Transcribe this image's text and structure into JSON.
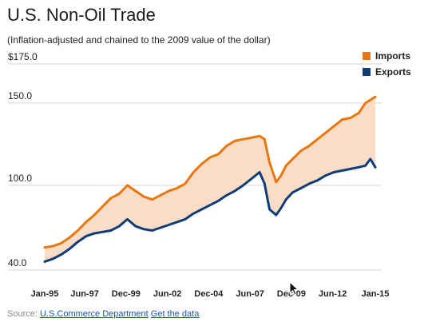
{
  "title": "U.S. Non-Oil Trade",
  "subtitle": "(Inflation-adjusted and chained to the 2009 value of the dollar)",
  "source": {
    "label": "Source:",
    "link1": "U.S.Commerce Department",
    "link2": "Get the data"
  },
  "colors": {
    "imports": "#e8780e",
    "exports": "#0e3d78",
    "fill": "#fbdcc6",
    "grid": "#d5d5d5"
  },
  "chart_data": {
    "type": "line",
    "title": "U.S. Non-Oil Trade",
    "subtitle": "(Inflation-adjusted and chained to the 2009 value of the dollar)",
    "y_ticks": [
      {
        "value": 175,
        "label": "$175.0"
      },
      {
        "value": 150,
        "label": "150.0"
      },
      {
        "value": 100,
        "label": "100.0"
      },
      {
        "value": 40,
        "label": "40.0"
      }
    ],
    "x_ticks": [
      "Jan-95",
      "Jun-97",
      "Dec-99",
      "Jun-02",
      "Dec-04",
      "Jun-07",
      "Dec-09",
      "Jun-12",
      "Jan-15"
    ],
    "x_tick_years": [
      1995.0,
      1997.42,
      1999.92,
      2002.42,
      2004.92,
      2007.42,
      2009.92,
      2012.42,
      2015.0
    ],
    "legend": [
      "Imports",
      "Exports"
    ],
    "legend_position": "top-right",
    "x": [
      1995.0,
      1995.5,
      1996.0,
      1996.5,
      1997.0,
      1997.5,
      1998.0,
      1998.5,
      1999.0,
      1999.5,
      2000.0,
      2000.5,
      2001.0,
      2001.5,
      2002.0,
      2002.5,
      2003.0,
      2003.5,
      2004.0,
      2004.5,
      2005.0,
      2005.5,
      2006.0,
      2006.5,
      2007.0,
      2007.5,
      2008.0,
      2008.3,
      2008.6,
      2009.0,
      2009.3,
      2009.6,
      2010.0,
      2010.5,
      2011.0,
      2011.5,
      2012.0,
      2012.5,
      2013.0,
      2013.5,
      2014.0,
      2014.4,
      2014.7,
      2015.0
    ],
    "series": [
      {
        "name": "Imports",
        "values": [
          56,
          57,
          59,
          63,
          68,
          74,
          79,
          85,
          91,
          94,
          100,
          96,
          92,
          90,
          93,
          96,
          98,
          101,
          108,
          113,
          117,
          119,
          124,
          127,
          128,
          129,
          130,
          128,
          114,
          102,
          106,
          112,
          116,
          121,
          124,
          128,
          132,
          136,
          140,
          141,
          144,
          150,
          152,
          154
        ]
      },
      {
        "name": "Exports",
        "values": [
          46,
          48,
          51,
          55,
          60,
          64,
          66,
          67,
          68,
          71,
          76,
          71,
          69,
          68,
          70,
          72,
          74,
          76,
          80,
          83,
          86,
          89,
          93,
          96,
          100,
          104,
          108,
          101,
          83,
          79,
          84,
          90,
          95,
          98,
          101,
          103,
          106,
          108,
          109,
          110,
          111,
          112,
          116,
          111
        ]
      }
    ]
  }
}
